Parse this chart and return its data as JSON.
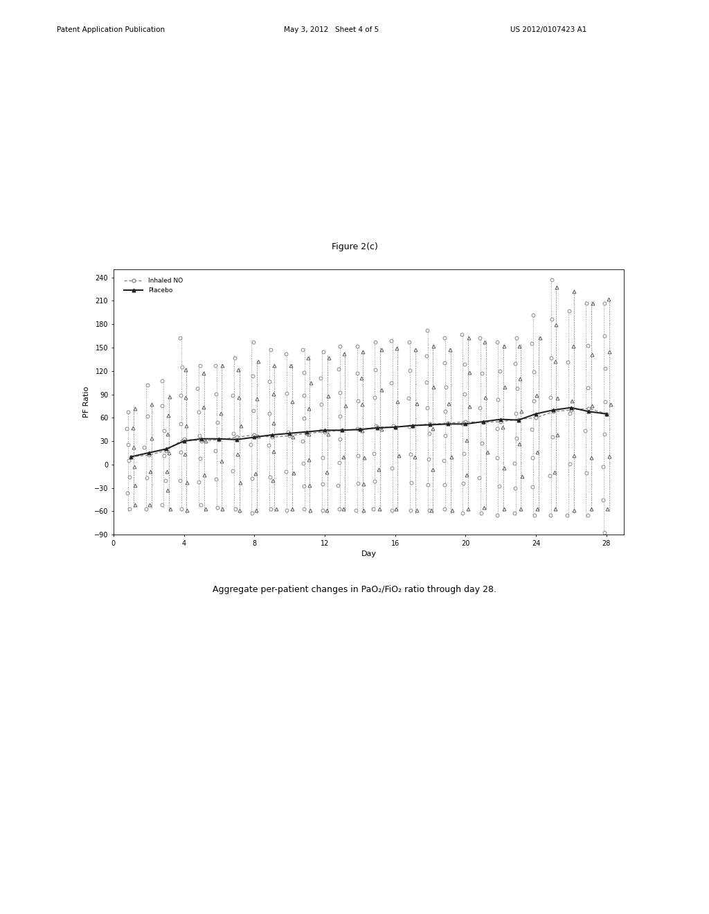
{
  "title": "Figure 2(c)",
  "xlabel": "Day",
  "ylabel": "PF Ratio",
  "xlim": [
    0,
    29
  ],
  "ylim": [
    -90,
    250
  ],
  "yticks": [
    -90,
    -60,
    -30,
    0,
    30,
    60,
    90,
    120,
    150,
    180,
    210,
    240
  ],
  "xticks": [
    0,
    4,
    8,
    12,
    16,
    20,
    24,
    28
  ],
  "legend_inhaled": "Inhaled NO",
  "legend_placebo": "Placebo",
  "background_color": "#ffffff",
  "days": [
    1,
    2,
    3,
    4,
    5,
    6,
    7,
    8,
    9,
    10,
    11,
    12,
    13,
    14,
    15,
    16,
    17,
    18,
    19,
    20,
    21,
    22,
    23,
    24,
    25,
    26,
    27,
    28
  ],
  "inhaled_mean": [
    10,
    12,
    18,
    33,
    30,
    32,
    35,
    38,
    35,
    37,
    40,
    42,
    44,
    45,
    48,
    48,
    50,
    52,
    53,
    55,
    54,
    55,
    58,
    60,
    68,
    70,
    72,
    65
  ],
  "inhaled_upper": [
    70,
    105,
    110,
    165,
    130,
    130,
    140,
    160,
    150,
    145,
    150,
    148,
    155,
    155,
    160,
    162,
    160,
    175,
    165,
    170,
    165,
    160,
    165,
    195,
    240,
    200,
    210,
    210
  ],
  "inhaled_lower": [
    -60,
    -60,
    -55,
    -60,
    -55,
    -58,
    -60,
    -65,
    -60,
    -62,
    -60,
    -62,
    -60,
    -62,
    -60,
    -62,
    -62,
    -62,
    -60,
    -65,
    -65,
    -68,
    -65,
    -68,
    -68,
    -68,
    -68,
    -90
  ],
  "placebo_mean": [
    10,
    15,
    20,
    30,
    33,
    33,
    32,
    35,
    38,
    40,
    42,
    44,
    44,
    45,
    47,
    48,
    50,
    51,
    52,
    52,
    55,
    58,
    57,
    65,
    70,
    73,
    68,
    65
  ],
  "placebo_upper": [
    75,
    80,
    90,
    125,
    120,
    130,
    125,
    135,
    130,
    130,
    140,
    140,
    145,
    148,
    150,
    152,
    150,
    155,
    150,
    165,
    160,
    155,
    155,
    165,
    230,
    225,
    210,
    215
  ],
  "placebo_lower": [
    -55,
    -55,
    -60,
    -62,
    -60,
    -60,
    -62,
    -62,
    -60,
    -60,
    -62,
    -62,
    -60,
    -62,
    -60,
    -60,
    -62,
    -62,
    -62,
    -60,
    -58,
    -60,
    -60,
    -60,
    -60,
    -62,
    -60,
    -60
  ],
  "header_left": "Patent Application Publication",
  "header_mid": "May 3, 2012   Sheet 4 of 5",
  "header_right": "US 2012/0107423 A1",
  "caption": "Aggregate per-patient changes in PaO₂/FiO₂ ratio through day 28."
}
